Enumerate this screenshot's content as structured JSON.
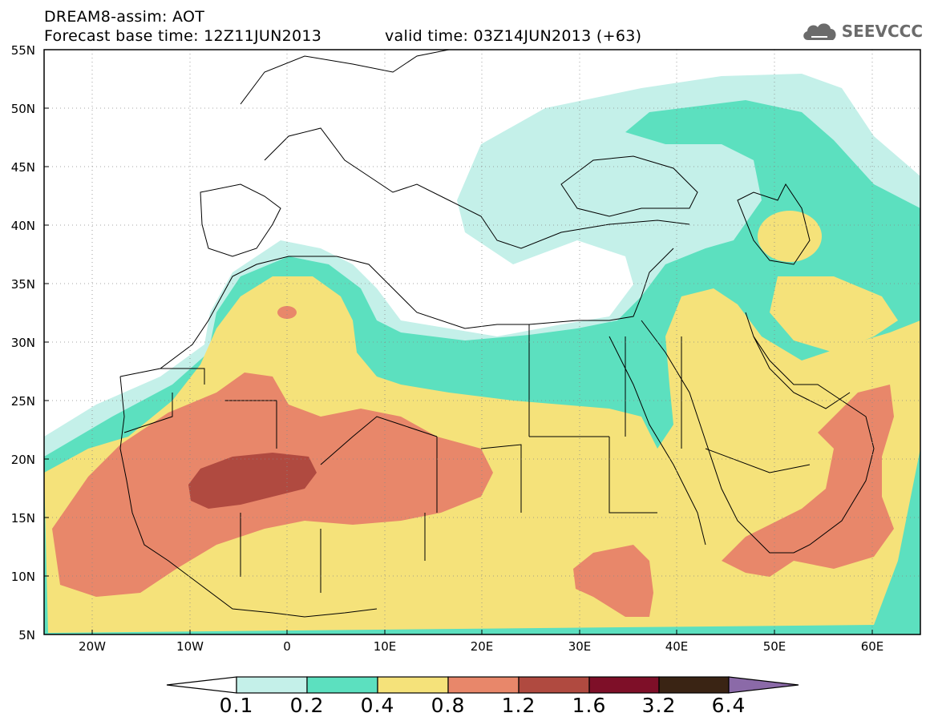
{
  "title": {
    "line1": "DREAM8-assim: AOT",
    "line2": "Forecast base time: 12Z11JUN2013",
    "valid": "valid time: 03Z14JUN2013 (+63)"
  },
  "logo": {
    "text": "SEEVCCC",
    "icon": "cloud-icon"
  },
  "map": {
    "lat_labels": [
      "55N",
      "50N",
      "45N",
      "40N",
      "35N",
      "30N",
      "25N",
      "20N",
      "15N",
      "10N",
      "5N"
    ],
    "lon_labels": [
      "20W",
      "10W",
      "0",
      "10E",
      "20E",
      "30E",
      "40E",
      "50E",
      "60E"
    ]
  },
  "colorbar": {
    "labels": [
      "0.1",
      "0.2",
      "0.4",
      "0.8",
      "1.2",
      "1.6",
      "3.2",
      "6.4"
    ],
    "colors": {
      "below": "#ffffff",
      "c1": "#c4f0e9",
      "c2": "#5ce0bf",
      "c3": "#f5e27a",
      "c4": "#e8876a",
      "c5": "#b04a40",
      "c6": "#7e0f28",
      "c7": "#3a2414",
      "above": "#8b6aa8"
    }
  }
}
